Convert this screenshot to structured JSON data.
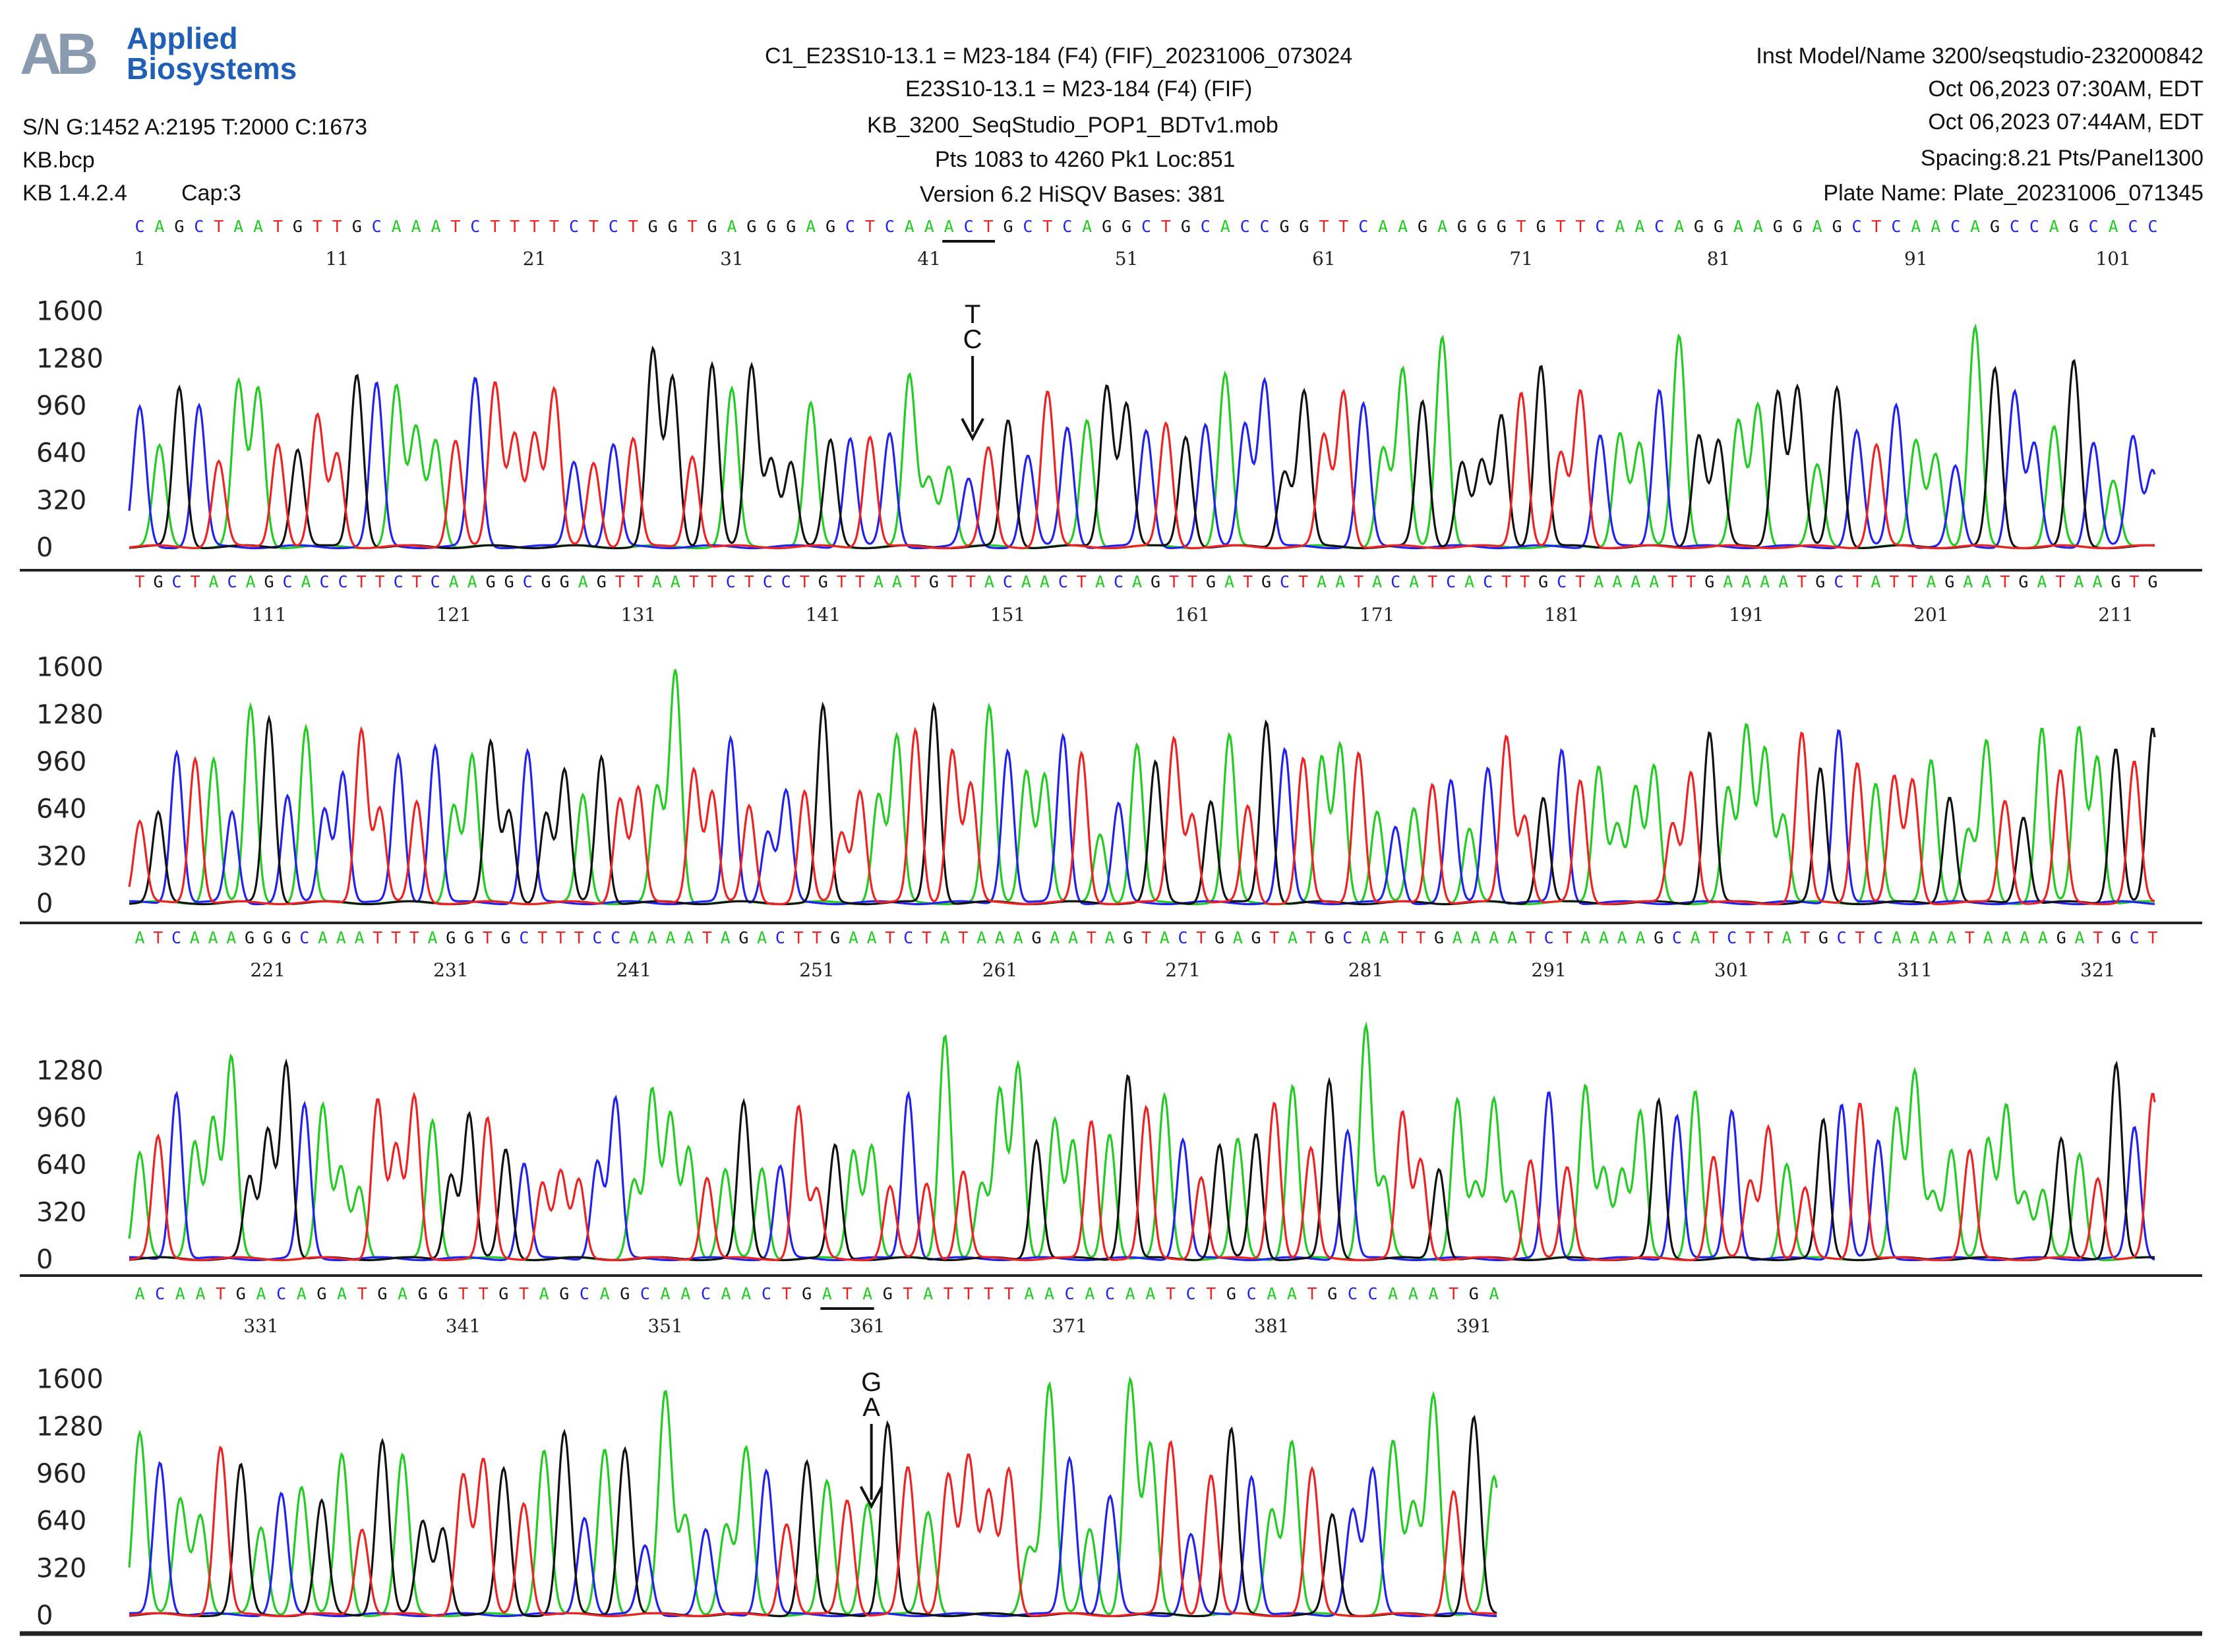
{
  "header": {
    "logo": {
      "line1": "Applied",
      "line2": "Biosystems"
    },
    "left": {
      "sn": "S/N G:1452 A:2195 T:2000 C:1673",
      "bcp": "KB.bcp",
      "kb": "KB 1.4.2.4",
      "cap": "Cap:3"
    },
    "center": {
      "line1": "C1_E23S10-13.1 = M23-184 (F4) (FIF)_20231006_073024",
      "line2": "E23S10-13.1 = M23-184 (F4) (FIF)",
      "line3": "KB_3200_SeqStudio_POP1_BDTv1.mob",
      "line4": "Pts 1083 to 4260 Pk1 Loc:851",
      "line5": "Version 6.2    HiSQV Bases: 381"
    },
    "right": {
      "line1": "Inst Model/Name 3200/seqstudio-232000842",
      "line2": "Oct 06,2023 07:30AM, EDT",
      "line3": "Oct 06,2023 07:44AM, EDT",
      "line4": "Spacing:8.21  Pts/Panel1300",
      "line5": "Plate Name: Plate_20231006_071345"
    }
  },
  "colors": {
    "A": "#22cc22",
    "C": "#2222ee",
    "G": "#111111",
    "T": "#ee2222"
  },
  "chart_data": {
    "type": "line",
    "title": "",
    "sequence": "CAGCTAATGTTGCAAATCTTTTCTCTGGTGAGGGAGCTCAAACTGCTCAGGCTGCACCGGTTCAAGAGGGTGTTCAACAGGAAGGAGCTCAACAGCCAGCACCTGCTACAGCACCTTCTCAAGGCGGAGTTAATTCTCCTGTTAATGTTACAACTACAGTTGATGCTAATACATCACTTGCTAAAATTGAAAATGCTATTAGAATGATAAGTGATCAAAGGGCAAATTTAGGTGCTTTCCAAAATAGACTTGAATCTATAAAGAATAGTACTGAGTATGCAATTGAAAATCTAAAAGCATCTTATGCTCAAAATAAAAGATGCTACAATGACAGATGAGGTTGTAGCAGCAACAACTGATAGTATTTTAACACAATCTGCAATGCCAAATGA",
    "panels": [
      {
        "start": 1,
        "end": 103,
        "ticks": [
          1,
          11,
          21,
          31,
          41,
          51,
          61,
          71,
          81,
          91,
          101
        ],
        "yticks": [
          0,
          320,
          640,
          960,
          1280,
          1600
        ]
      },
      {
        "start": 104,
        "end": 213,
        "ticks": [
          111,
          121,
          131,
          141,
          151,
          161,
          171,
          181,
          191,
          201,
          211
        ],
        "yticks": [
          0,
          320,
          640,
          960,
          1280,
          1600
        ]
      },
      {
        "start": 214,
        "end": 324,
        "ticks": [
          221,
          231,
          241,
          251,
          261,
          271,
          281,
          291,
          301,
          311,
          321
        ],
        "yticks": [
          0,
          320,
          640,
          960,
          1280
        ]
      },
      {
        "start": 325,
        "end": 392,
        "ticks": [
          331,
          341,
          351,
          361,
          371,
          381,
          391
        ],
        "yticks": [
          0,
          320,
          640,
          960,
          1280,
          1600
        ]
      }
    ],
    "variants": [
      {
        "panel": 0,
        "pos": 43,
        "top": "T",
        "bottom": "C"
      },
      {
        "panel": 3,
        "pos": 361,
        "top": "G",
        "bottom": "A"
      }
    ],
    "underlines": [
      {
        "panel": 0,
        "from": 42,
        "to": 44
      },
      {
        "panel": 3,
        "from": 359,
        "to": 361
      }
    ]
  }
}
